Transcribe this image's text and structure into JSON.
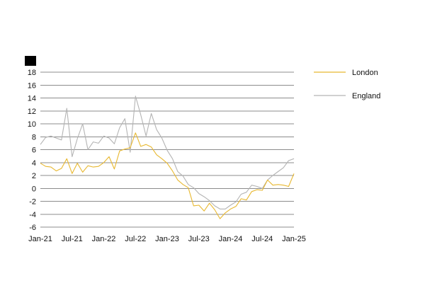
{
  "chart_data": {
    "type": "line",
    "title": "",
    "xlabel": "",
    "ylabel": "",
    "ylim": [
      -6,
      18
    ],
    "yticks": [
      18,
      16,
      14,
      12,
      10,
      8,
      6,
      4,
      2,
      0,
      -2,
      -4,
      -6
    ],
    "xticks": [
      "Jan-21",
      "Jul-21",
      "Jan-22",
      "Jul-22",
      "Jan-23",
      "Jul-23",
      "Jan-24",
      "Jul-24",
      "Jan-25"
    ],
    "grid": true,
    "legend_position": "right",
    "x_start": "Jan-21",
    "x_end": "Jan-25",
    "series": [
      {
        "name": "London",
        "color": "#e8b830",
        "values": [
          3.9,
          3.4,
          3.3,
          2.7,
          3.1,
          4.6,
          2.3,
          3.9,
          2.5,
          3.5,
          3.3,
          3.4,
          4.0,
          4.9,
          3.0,
          5.8,
          6.1,
          6.3,
          8.6,
          6.5,
          6.8,
          6.4,
          5.2,
          4.6,
          3.9,
          2.7,
          1.3,
          0.6,
          0.1,
          -2.7,
          -2.6,
          -3.5,
          -2.3,
          -3.3,
          -4.7,
          -3.8,
          -3.2,
          -2.8,
          -1.6,
          -1.8,
          -0.5,
          -0.2,
          -0.3,
          1.3,
          0.5,
          0.6,
          0.5,
          0.3,
          2.3
        ]
      },
      {
        "name": "England",
        "color": "#b4b4b4",
        "values": [
          6.8,
          7.9,
          8.1,
          7.8,
          7.5,
          12.4,
          4.9,
          7.7,
          10.0,
          6.0,
          7.2,
          7.0,
          8.1,
          7.8,
          6.9,
          9.4,
          10.8,
          5.6,
          14.3,
          11.4,
          8.1,
          11.6,
          9.1,
          7.8,
          5.9,
          4.6,
          2.6,
          1.9,
          0.6,
          0.1,
          -0.8,
          -1.3,
          -1.9,
          -2.7,
          -3.2,
          -3.2,
          -2.6,
          -2.1,
          -0.9,
          -0.6,
          0.5,
          0.3,
          0.0,
          1.3,
          2.0,
          2.6,
          3.2,
          4.3,
          4.6
        ]
      }
    ]
  }
}
